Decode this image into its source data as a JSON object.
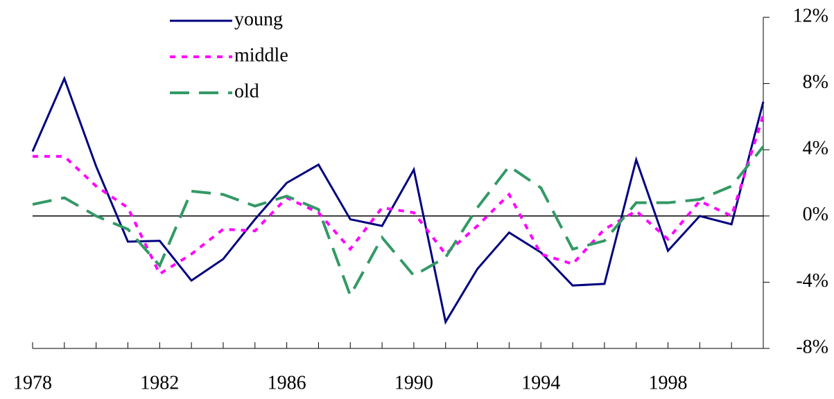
{
  "chart_data": {
    "type": "line",
    "x": [
      1978,
      1979,
      1980,
      1981,
      1982,
      1983,
      1984,
      1985,
      1986,
      1987,
      1988,
      1989,
      1990,
      1991,
      1992,
      1993,
      1994,
      1995,
      1996,
      1997,
      1998,
      1999,
      2000,
      2001
    ],
    "xlim": [
      1978,
      2001
    ],
    "xticks": [
      1978,
      1982,
      1986,
      1990,
      1994,
      1998
    ],
    "ylim": [
      -8,
      12
    ],
    "yticks": [
      {
        "value": -8,
        "label": "-8%"
      },
      {
        "value": -4,
        "label": "-4%"
      },
      {
        "value": 0,
        "label": "0%"
      },
      {
        "value": 4,
        "label": "4%"
      },
      {
        "value": 8,
        "label": "8%"
      },
      {
        "value": 12,
        "label": "12%"
      }
    ],
    "series": [
      {
        "name": "young",
        "color": "#000080",
        "dash": "solid",
        "values": [
          3.9,
          8.3,
          3.0,
          -1.55,
          -1.5,
          -3.9,
          -2.6,
          -0.2,
          2.0,
          3.1,
          -0.2,
          -0.6,
          2.8,
          -6.4,
          -3.2,
          -1.0,
          -2.2,
          -4.2,
          -4.1,
          3.4,
          -2.1,
          0.0,
          -0.5,
          6.9
        ]
      },
      {
        "name": "middle",
        "color": "#ff00ff",
        "dash": "dotted",
        "values": [
          3.6,
          3.6,
          1.8,
          0.5,
          -3.5,
          -2.3,
          -0.8,
          -0.9,
          1.1,
          0.2,
          -2.0,
          0.5,
          0.2,
          -2.3,
          -0.6,
          1.3,
          -2.3,
          -2.9,
          -0.8,
          0.3,
          -1.4,
          0.9,
          0.0,
          6.1
        ]
      },
      {
        "name": "old",
        "color": "#339966",
        "dash": "dashed",
        "values": [
          0.7,
          1.1,
          0.0,
          -0.8,
          -3.0,
          1.5,
          1.3,
          0.6,
          1.2,
          0.4,
          -4.8,
          -1.3,
          -3.6,
          -2.5,
          0.5,
          3.0,
          1.7,
          -2.0,
          -1.5,
          0.8,
          0.8,
          1.0,
          1.8,
          4.2
        ]
      }
    ]
  }
}
